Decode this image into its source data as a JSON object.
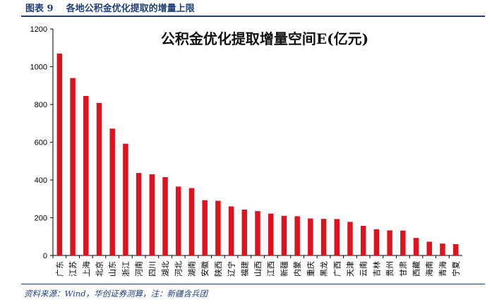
{
  "figure": {
    "label": "图表 9    各地公积金优化提取的增量上限",
    "source": "资料来源：Wind，华创证券测算，注：新疆含兵团",
    "accent_color": "#1f3f7a"
  },
  "chart_data": {
    "type": "bar",
    "title": "公积金优化提取增量空间E(亿元)",
    "xlabel": "",
    "ylabel": "",
    "ylim": [
      0,
      1200
    ],
    "yticks": [
      0,
      200,
      400,
      600,
      800,
      1000,
      1200
    ],
    "grid": false,
    "bar_color": "#e0121d",
    "categories": [
      "广东",
      "江苏",
      "上海",
      "北京",
      "山东",
      "浙江",
      "河南",
      "四川",
      "湖北",
      "河北",
      "湖南",
      "安徽",
      "陕西",
      "辽宁",
      "福建",
      "山西",
      "江西",
      "新疆",
      "内蒙",
      "重庆",
      "黑龙",
      "广西",
      "天津",
      "云南",
      "吉林",
      "贵州",
      "甘肃",
      "西藏",
      "海南",
      "青海",
      "宁夏"
    ],
    "values": [
      1070,
      940,
      845,
      808,
      672,
      592,
      437,
      430,
      415,
      365,
      357,
      293,
      290,
      260,
      243,
      235,
      222,
      210,
      208,
      196,
      194,
      193,
      178,
      157,
      139,
      133,
      132,
      93,
      73,
      63,
      60
    ]
  }
}
